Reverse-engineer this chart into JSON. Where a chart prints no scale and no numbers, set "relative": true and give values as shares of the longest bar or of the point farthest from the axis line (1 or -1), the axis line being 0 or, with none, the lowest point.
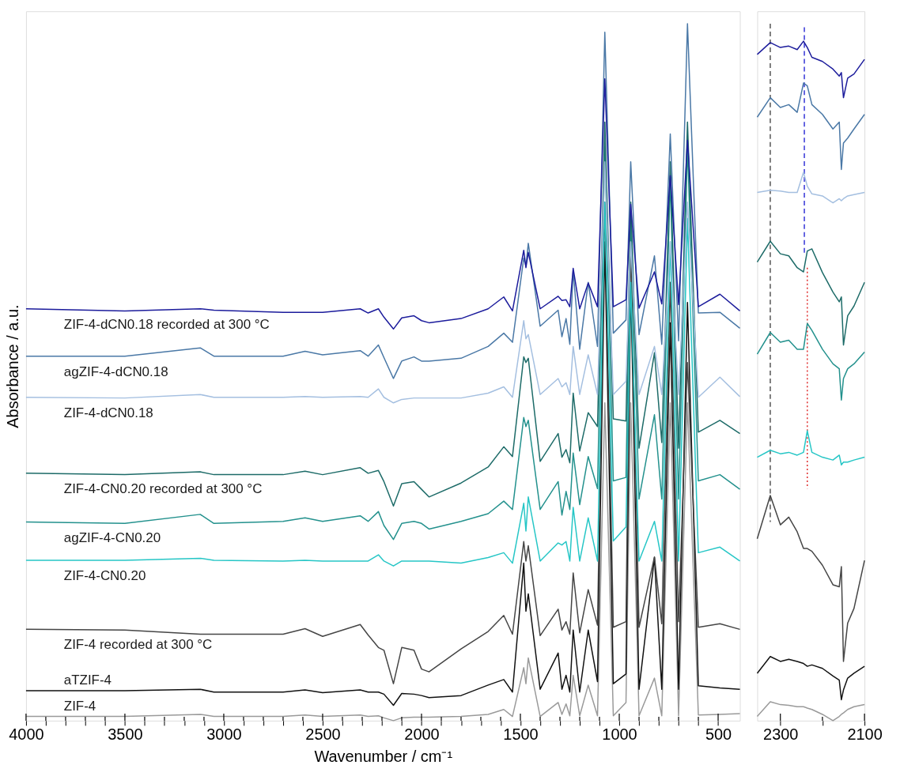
{
  "chart_data": [
    {
      "type": "line",
      "relative": true,
      "xlabel": "Wavenumber  /  cm⁻¹",
      "ylabel": "Absorbance  /  a.u.",
      "xlim": [
        4000,
        390
      ],
      "xticks": [
        4000,
        {
          "value": 3900,
          "label": null
        },
        {
          "value": 3800,
          "label": null
        },
        {
          "value": 3700,
          "label": null
        },
        {
          "value": 3600,
          "label": null
        },
        3500,
        {
          "value": 3400,
          "label": null
        },
        {
          "value": 3300,
          "label": null
        },
        {
          "value": 3200,
          "label": null
        },
        {
          "value": 3100,
          "label": null
        },
        3000,
        {
          "value": 2900,
          "label": null
        },
        {
          "value": 2800,
          "label": null
        },
        {
          "value": 2700,
          "label": null
        },
        {
          "value": 2600,
          "label": null
        },
        2500,
        {
          "value": 2400,
          "label": null
        },
        {
          "value": 2300,
          "label": null
        },
        {
          "value": 2200,
          "label": null
        },
        {
          "value": 2100,
          "label": null
        },
        2000,
        {
          "value": 1900,
          "label": null
        },
        {
          "value": 1800,
          "label": null
        },
        {
          "value": 1700,
          "label": null
        },
        {
          "value": 1600,
          "label": null
        },
        1500,
        {
          "value": 1400,
          "label": null
        },
        {
          "value": 1300,
          "label": null
        },
        {
          "value": 1200,
          "label": null
        },
        {
          "value": 1100,
          "label": null
        },
        1000,
        {
          "value": 900,
          "label": null
        },
        {
          "value": 800,
          "label": null
        },
        {
          "value": 700,
          "label": null
        },
        {
          "value": 600,
          "label": null
        },
        500
      ],
      "x": [
        4000,
        3500,
        3119,
        3050,
        2700,
        2589,
        2500,
        2310,
        2270,
        2218,
        2190,
        2142,
        2100,
        2038,
        2000,
        1962,
        1800,
        1663,
        1584,
        1540,
        1483,
        1472,
        1460,
        1400,
        1309,
        1290,
        1269,
        1250,
        1233,
        1200,
        1157,
        1110,
        1073,
        1030,
        966,
        942,
        900,
        822,
        785,
        742,
        700,
        655,
        600,
        491,
        390
      ],
      "series": [
        {
          "name": "ZIF-4-dCN0.18 recorded at 300 °C",
          "color": "#1c1c9c",
          "values": [
            0.591,
            0.588,
            0.591,
            0.589,
            0.586,
            0.586,
            0.586,
            0.591,
            0.585,
            0.591,
            0.579,
            0.562,
            0.578,
            0.581,
            0.574,
            0.571,
            0.577,
            0.591,
            0.608,
            0.588,
            0.675,
            0.65,
            0.672,
            0.591,
            0.609,
            0.603,
            0.604,
            0.594,
            0.649,
            0.591,
            0.628,
            0.594,
            0.921,
            0.594,
            0.604,
            0.741,
            0.592,
            0.644,
            0.598,
            0.782,
            0.597,
            0.833,
            0.594,
            0.612,
            0.588
          ]
        },
        {
          "name": "agZIF-4-dCN0.18",
          "color": "#4a78a6",
          "values": [
            0.523,
            0.523,
            0.535,
            0.523,
            0.523,
            0.53,
            0.525,
            0.531,
            0.523,
            0.539,
            0.521,
            0.491,
            0.516,
            0.522,
            0.516,
            0.516,
            0.52,
            0.537,
            0.556,
            0.543,
            0.664,
            0.652,
            0.685,
            0.566,
            0.589,
            0.551,
            0.577,
            0.54,
            0.646,
            0.533,
            0.629,
            0.537,
            0.988,
            0.556,
            0.575,
            0.802,
            0.554,
            0.667,
            0.54,
            0.842,
            0.545,
            1.0,
            0.585,
            0.586,
            0.563
          ]
        },
        {
          "name": "ZIF-4-dCN0.18",
          "color": "#a4bfe0",
          "values": [
            0.464,
            0.463,
            0.468,
            0.464,
            0.464,
            0.465,
            0.464,
            0.465,
            0.464,
            0.476,
            0.464,
            0.456,
            0.461,
            0.463,
            0.463,
            0.463,
            0.463,
            0.47,
            0.479,
            0.464,
            0.574,
            0.548,
            0.554,
            0.468,
            0.491,
            0.479,
            0.485,
            0.468,
            0.537,
            0.468,
            0.525,
            0.468,
            0.802,
            0.468,
            0.487,
            0.687,
            0.468,
            0.537,
            0.468,
            0.687,
            0.468,
            0.744,
            0.464,
            0.493,
            0.465
          ]
        },
        {
          "name": "ZIF-4-CN0.20 recorded at 300 °C",
          "color": "#1d6b68",
          "values": [
            0.355,
            0.353,
            0.357,
            0.353,
            0.353,
            0.358,
            0.353,
            0.363,
            0.355,
            0.359,
            0.343,
            0.308,
            0.34,
            0.343,
            0.332,
            0.321,
            0.341,
            0.364,
            0.393,
            0.379,
            0.522,
            0.514,
            0.52,
            0.372,
            0.412,
            0.378,
            0.389,
            0.37,
            0.47,
            0.387,
            0.442,
            0.422,
            0.859,
            0.433,
            0.43,
            0.744,
            0.391,
            0.528,
            0.399,
            0.802,
            0.391,
            0.859,
            0.414,
            0.431,
            0.412
          ]
        },
        {
          "name": "agZIF-4-CN0.20",
          "color": "#23918d",
          "values": [
            0.285,
            0.283,
            0.296,
            0.283,
            0.286,
            0.291,
            0.286,
            0.294,
            0.286,
            0.3,
            0.28,
            0.26,
            0.283,
            0.286,
            0.283,
            0.275,
            0.286,
            0.297,
            0.315,
            0.303,
            0.435,
            0.422,
            0.431,
            0.303,
            0.343,
            0.295,
            0.329,
            0.303,
            0.384,
            0.31,
            0.379,
            0.333,
            0.825,
            0.344,
            0.349,
            0.721,
            0.318,
            0.439,
            0.318,
            0.779,
            0.318,
            0.825,
            0.344,
            0.353,
            0.332
          ]
        },
        {
          "name": "ZIF-4-CN0.20",
          "color": "#26c6c6",
          "values": [
            0.23,
            0.23,
            0.233,
            0.23,
            0.229,
            0.23,
            0.229,
            0.229,
            0.229,
            0.238,
            0.229,
            0.222,
            0.229,
            0.229,
            0.229,
            0.229,
            0.226,
            0.234,
            0.241,
            0.226,
            0.312,
            0.272,
            0.321,
            0.229,
            0.255,
            0.252,
            0.257,
            0.229,
            0.306,
            0.229,
            0.291,
            0.229,
            0.744,
            0.258,
            0.278,
            0.629,
            0.229,
            0.286,
            0.229,
            0.687,
            0.229,
            0.721,
            0.241,
            0.249,
            0.229
          ]
        },
        {
          "name": "ZIF-4 recorded at 300 °C",
          "color": "#454545",
          "values": [
            0.131,
            0.13,
            0.124,
            0.124,
            0.124,
            0.132,
            0.121,
            0.138,
            0.123,
            0.105,
            0.101,
            0.053,
            0.105,
            0.101,
            0.074,
            0.07,
            0.103,
            0.128,
            0.151,
            0.124,
            0.257,
            0.229,
            0.251,
            0.122,
            0.16,
            0.13,
            0.142,
            0.124,
            0.212,
            0.126,
            0.188,
            0.137,
            0.744,
            0.134,
            0.142,
            0.687,
            0.134,
            0.235,
            0.139,
            0.629,
            0.142,
            0.514,
            0.134,
            0.139,
            0.131
          ]
        },
        {
          "name": "aTZIF-4",
          "color": "#111111",
          "values": [
            0.043,
            0.043,
            0.045,
            0.041,
            0.041,
            0.044,
            0.04,
            0.044,
            0.041,
            0.041,
            0.038,
            0.022,
            0.039,
            0.038,
            0.036,
            0.033,
            0.036,
            0.051,
            0.059,
            0.041,
            0.226,
            0.157,
            0.182,
            0.045,
            0.097,
            0.045,
            0.065,
            0.041,
            0.13,
            0.041,
            0.13,
            0.056,
            0.687,
            0.053,
            0.067,
            0.629,
            0.045,
            0.234,
            0.045,
            0.571,
            0.045,
            0.6,
            0.05,
            0.047,
            0.045
          ]
        },
        {
          "name": "ZIF-4",
          "color": "#9a9a9a",
          "values": [
            0.006,
            0.006,
            0.009,
            0.006,
            0.006,
            0.008,
            0.006,
            0.008,
            0.006,
            0.007,
            0.004,
            0.0,
            0.004,
            0.005,
            0.005,
            0.005,
            0.006,
            0.009,
            0.016,
            0.006,
            0.076,
            0.053,
            0.09,
            0.006,
            0.026,
            0.009,
            0.024,
            0.007,
            0.065,
            0.007,
            0.051,
            0.007,
            0.456,
            0.007,
            0.026,
            0.456,
            0.007,
            0.061,
            0.007,
            0.456,
            0.007,
            0.456,
            0.008,
            0.009,
            0.01
          ]
        }
      ]
    },
    {
      "type": "line",
      "relative": true,
      "xlim": [
        2355,
        2100
      ],
      "xticks": [
        2300,
        {
          "value": 2200,
          "label": null
        },
        2100
      ],
      "x": [
        2355,
        2324,
        2300,
        2280,
        2260,
        2245,
        2236,
        2225,
        2200,
        2175,
        2160,
        2155,
        2150,
        2140,
        2125,
        2100
      ],
      "series": [
        {
          "color": "#1c1c9c",
          "values": [
            0.956,
            0.973,
            0.966,
            0.968,
            0.963,
            0.975,
            0.966,
            0.952,
            0.946,
            0.935,
            0.925,
            0.93,
            0.894,
            0.922,
            0.928,
            0.949
          ]
        },
        {
          "color": "#4a78a6",
          "values": [
            0.866,
            0.894,
            0.88,
            0.884,
            0.873,
            0.915,
            0.911,
            0.884,
            0.87,
            0.849,
            0.859,
            0.791,
            0.829,
            0.836,
            0.849,
            0.87
          ]
        },
        {
          "color": "#a4bfe0",
          "values": [
            0.758,
            0.761,
            0.76,
            0.758,
            0.758,
            0.787,
            0.767,
            0.756,
            0.753,
            0.743,
            0.749,
            0.746,
            0.749,
            0.753,
            0.755,
            0.758
          ]
        },
        {
          "color": "#1d6b68",
          "values": [
            0.658,
            0.688,
            0.67,
            0.667,
            0.65,
            0.644,
            0.674,
            0.677,
            0.643,
            0.615,
            0.601,
            0.608,
            0.539,
            0.581,
            0.595,
            0.629
          ]
        },
        {
          "color": "#23918d",
          "values": [
            0.526,
            0.557,
            0.543,
            0.546,
            0.533,
            0.533,
            0.57,
            0.56,
            0.533,
            0.512,
            0.505,
            0.46,
            0.491,
            0.505,
            0.512,
            0.529
          ]
        },
        {
          "color": "#26c6c6",
          "values": [
            0.378,
            0.388,
            0.383,
            0.385,
            0.381,
            0.385,
            0.416,
            0.385,
            0.378,
            0.374,
            0.381,
            0.367,
            0.371,
            0.371,
            0.374,
            0.378
          ]
        },
        {
          "color": "#454545",
          "values": [
            0.261,
            0.323,
            0.281,
            0.292,
            0.271,
            0.247,
            0.247,
            0.243,
            0.223,
            0.195,
            0.192,
            0.221,
            0.085,
            0.14,
            0.161,
            0.23
          ]
        },
        {
          "color": "#111111",
          "values": [
            0.068,
            0.092,
            0.085,
            0.088,
            0.085,
            0.082,
            0.078,
            0.08,
            0.075,
            0.064,
            0.058,
            0.03,
            0.044,
            0.061,
            0.068,
            0.078
          ]
        },
        {
          "color": "#9a9a9a",
          "values": [
            0.006,
            0.027,
            0.023,
            0.022,
            0.02,
            0.02,
            0.018,
            0.016,
            0.009,
            0.0,
            0.006,
            0.009,
            0.011,
            0.016,
            0.02,
            0.023
          ]
        },
        {
          "x": [
            2324,
            2324
          ],
          "color": "#555555",
          "line_style": "dashed",
          "values": [
            1.0,
            0.285
          ]
        },
        {
          "x": [
            2243,
            2243
          ],
          "color": "#3535d8",
          "line_style": "dashed",
          "values": [
            0.995,
            0.67
          ]
        },
        {
          "x": [
            2236,
            2236
          ],
          "color": "#e03030",
          "line_style": "dotted",
          "values": [
            0.65,
            0.333
          ]
        }
      ]
    }
  ]
}
